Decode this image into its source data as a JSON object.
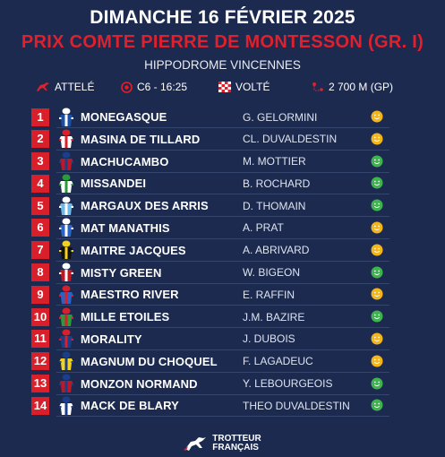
{
  "header": {
    "date": "DIMANCHE 16 FÉVRIER 2025",
    "race": "PRIX COMTE PIERRE DE MONTESSON (GR. I)",
    "venue": "HIPPODROME VINCENNES"
  },
  "info": {
    "discipline": "ATTELÉ",
    "course": "C6 - 16:25",
    "start": "VOLTÉ",
    "distance": "2 700 M (GP)"
  },
  "colors": {
    "background": "#1c2a4f",
    "accent_red": "#d81f2a",
    "status_yellow": "#f2b61c",
    "status_green": "#3fb34f"
  },
  "runners": [
    {
      "number": "1",
      "horse": "MONEGASQUE",
      "driver": "G. GELORMINI",
      "form": "yellow",
      "silk": [
        "#1a4fa8",
        "#ffffff"
      ]
    },
    {
      "number": "2",
      "horse": "MASINA DE TILLARD",
      "driver": "CL. DUVALDESTIN",
      "form": "yellow",
      "silk": [
        "#ffffff",
        "#d81f2a"
      ]
    },
    {
      "number": "3",
      "horse": "MACHUCAMBO",
      "driver": "M. MOTTIER",
      "form": "green",
      "silk": [
        "#c01822",
        "#1a3e8a"
      ]
    },
    {
      "number": "4",
      "horse": "MISSANDEI",
      "driver": "B. ROCHARD",
      "form": "green",
      "silk": [
        "#ffffff",
        "#2a9a3a"
      ]
    },
    {
      "number": "5",
      "horse": "MARGAUX DES ARRIS",
      "driver": "D. THOMAIN",
      "form": "green",
      "silk": [
        "#6cb8e8",
        "#ffffff"
      ]
    },
    {
      "number": "6",
      "horse": "MAT MANATHIS",
      "driver": "A. PRAT",
      "form": "yellow",
      "silk": [
        "#2a63c8",
        "#ffffff"
      ]
    },
    {
      "number": "7",
      "horse": "MAITRE JACQUES",
      "driver": "A. ABRIVARD",
      "form": "yellow",
      "silk": [
        "#111111",
        "#f2d21c"
      ]
    },
    {
      "number": "8",
      "horse": "MISTY GREEN",
      "driver": "W. BIGEON",
      "form": "green",
      "silk": [
        "#c01822",
        "#ffffff"
      ]
    },
    {
      "number": "9",
      "horse": "MAESTRO RIVER",
      "driver": "E. RAFFIN",
      "form": "yellow",
      "silk": [
        "#2a63c8",
        "#d81f2a"
      ]
    },
    {
      "number": "10",
      "horse": "MILLE ETOILES",
      "driver": "J.M. BAZIRE",
      "form": "green",
      "silk": [
        "#2a9a3a",
        "#d81f2a"
      ]
    },
    {
      "number": "11",
      "horse": "MORALITY",
      "driver": "J. DUBOIS",
      "form": "yellow",
      "silk": [
        "#1a3e8a",
        "#d81f2a"
      ]
    },
    {
      "number": "12",
      "horse": "MAGNUM DU CHOQUEL",
      "driver": "F. LAGADEUC",
      "form": "yellow",
      "silk": [
        "#f2d21c",
        "#1a3e8a"
      ]
    },
    {
      "number": "13",
      "horse": "MONZON NORMAND",
      "driver": "Y. LEBOURGEOIS",
      "form": "green",
      "silk": [
        "#c01822",
        "#1a3e8a"
      ]
    },
    {
      "number": "14",
      "horse": "MACK DE BLARY",
      "driver": "THEO DUVALDESTIN",
      "form": "green",
      "silk": [
        "#ffffff",
        "#1a3e8a"
      ]
    }
  ],
  "footer": {
    "brand_line1": "TROTTEUR",
    "brand_line2": "FRANÇAIS"
  }
}
